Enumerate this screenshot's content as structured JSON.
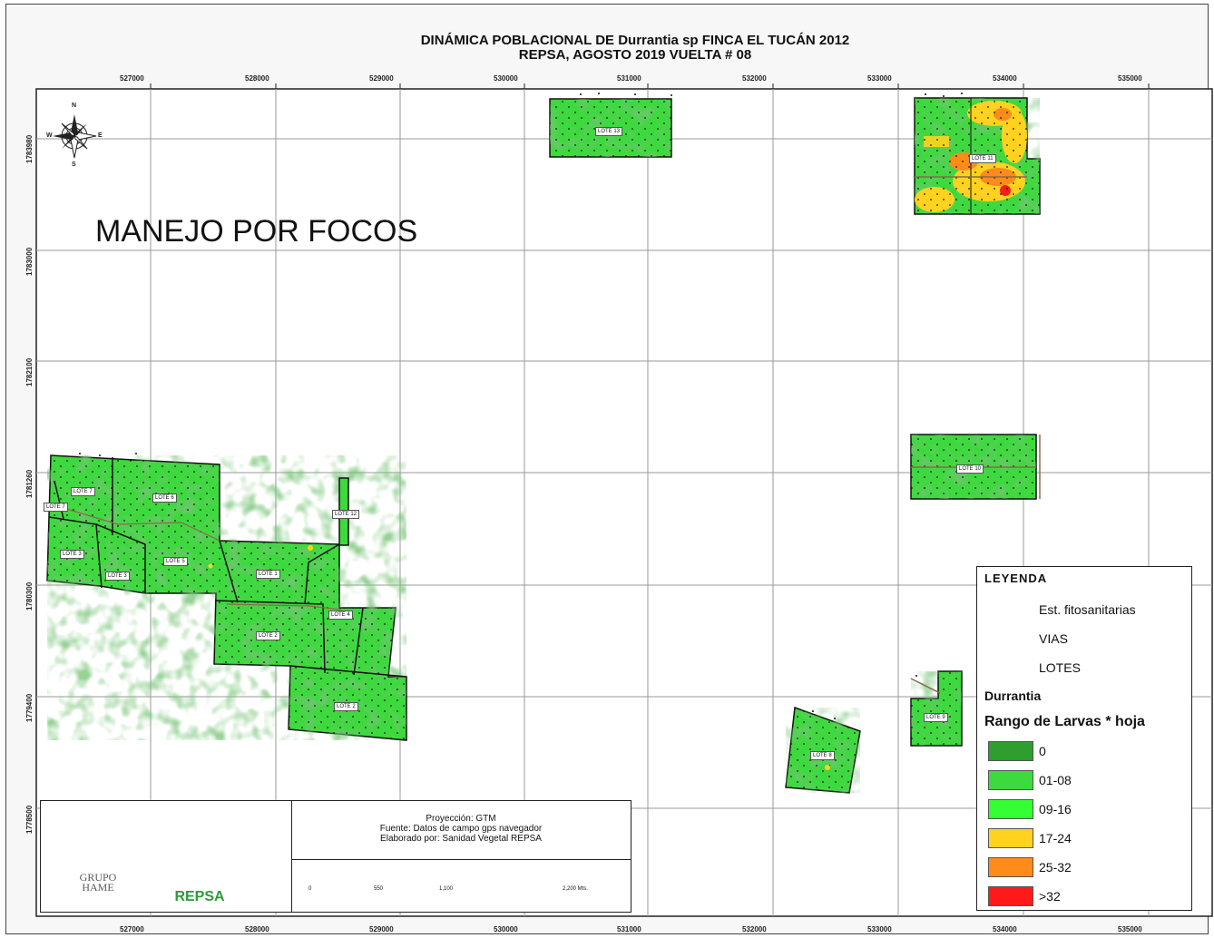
{
  "map": {
    "title_line1": "DINÁMICA POBLACIONAL DE Durrantia sp FINCA EL TUCÁN 2012",
    "title_line2": "REPSA, AGOSTO 2019 VUELTA # 08",
    "overlay_text": "MANEJO POR FOCOS",
    "x_ticks": [
      "527000",
      "528000",
      "529000",
      "530000",
      "531000",
      "532000",
      "533000",
      "534000",
      "535000"
    ],
    "y_ticks": [
      "1783980",
      "1783000",
      "1782100",
      "1781260",
      "1780300",
      "1779400",
      "1778500"
    ],
    "compass": {
      "n": "N",
      "s": "S",
      "e": "E",
      "w": "W"
    }
  },
  "lotes": {
    "l1": "LOTE 1",
    "l2": "LOTE 2",
    "l3": "LOTE 3",
    "l4": "LOTE 4",
    "l5": "LOTE 5",
    "l6": "LOTE 6",
    "l7": "LOTE 7",
    "l8": "LOTE 8",
    "l9": "LOTE 9",
    "l10": "LOTE 10",
    "l11": "LOTE 11",
    "l12": "LOTE 12",
    "l13": "LOTE 13"
  },
  "legend": {
    "title": "LEYENDA",
    "stations": "Est. fitosanitarias",
    "vias": "VIAS",
    "lotes": "LOTES",
    "species": "Durrantia",
    "range_title": "Rango de Larvas * hoja",
    "ranges": [
      {
        "label": "0",
        "color": "#2e9e2e"
      },
      {
        "label": "01-08",
        "color": "#3ed93e"
      },
      {
        "label": "09-16",
        "color": "#33ff33"
      },
      {
        "label": "17-24",
        "color": "#ffd21f"
      },
      {
        "label": "25-32",
        "color": "#ff8c1a"
      },
      {
        "label": ">32",
        "color": "#ff1a1a"
      }
    ],
    "via_color": "#8b6a4a"
  },
  "info": {
    "projection": "Proyección: GTM",
    "source": "Fuente: Datos de campo gps navegador",
    "author": "Elaborado por: Sanidad Vegetal  REPSA",
    "scale_labels": [
      "0",
      "550",
      "1,100",
      "2,200 Mts."
    ],
    "logo_hame_line1": "GRUPO",
    "logo_hame_line2": "HAME",
    "logo_repsa": "REPSA"
  }
}
